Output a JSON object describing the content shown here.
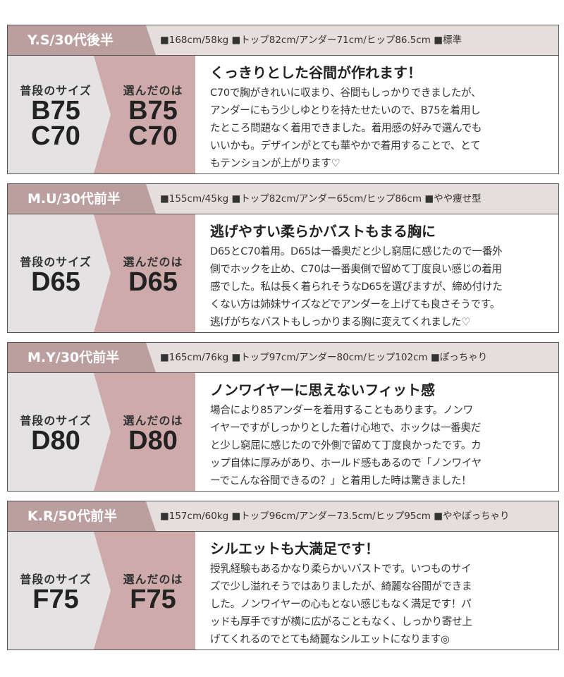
{
  "labels": {
    "usual": "普段のサイズ",
    "chosen": "選んだのは"
  },
  "colors": {
    "tag": "#bb9f9f",
    "header_bg": "#e6dedd",
    "left_panel": "#e4e2e2",
    "chosen_panel": "#ceabaa"
  },
  "cards": [
    {
      "person": "Y.S/30代後半",
      "stats": "■168cm/58kg ■トップ82cm/アンダー71cm/ヒップ86.5cm ■標準",
      "usual": [
        "B75",
        "C70"
      ],
      "chosen": [
        "B75",
        "C70"
      ],
      "title": "くっきりとした谷間が作れます！",
      "lines": [
        "C70で胸がきれいに収まり、谷間もしっかりできましたが、",
        "アンダーにもう少しゆとりを持たせたいので、B75を着用し",
        "たところ問題なく着用できました。着用感の好みで選んでも",
        "いいかも。デザインがとても華やかで着用することで、とて",
        "もテンションが上がります♡"
      ]
    },
    {
      "person": "M.U/30代前半",
      "stats": "■155cm/45kg ■トップ82cm/アンダー65cm/ヒップ86cm ■やや痩せ型",
      "usual": [
        "D65"
      ],
      "chosen": [
        "D65"
      ],
      "title": "逃げやすい柔らかバストもまる胸に",
      "lines": [
        "D65とC70着用。D65は一番奥だと少し窮屈に感じたので一番外",
        "側でホックを止め、C70は一番奥側で留めて丁度良い感じの着用",
        "感でした。私は長く着られそうなD65を選びますが、締め付けた",
        "くない方は姉妹サイズなどでアンダーを上げても良さそうです。",
        "逃げがちなバストもしっかりまる胸に変えてくれました♡"
      ]
    },
    {
      "person": "M.Y/30代前半",
      "stats": "■165cm/76kg ■トップ97cm/アンダー80cm/ヒップ102cm ■ぽっちゃり",
      "usual": [
        "D80"
      ],
      "chosen": [
        "D80"
      ],
      "title": "ノンワイヤーに思えないフィット感",
      "lines": [
        "場合により85アンダーを着用することもあります。ノンワ",
        "イヤーですがしっかりとした着け心地で、ホックは一番奥だ",
        "と少し窮屈に感じたので外側で留めて丁度良かったです。カ",
        "ップ自体に厚みがあり、ホールド感もあるので「ノンワイヤ",
        "ーでこんな谷間できるの？」と着用した時は驚きました！"
      ]
    },
    {
      "person": "K.R/50代前半",
      "stats": "■157cm/60kg ■トップ96cm/アンダー73.5cm/ヒップ95cm ■ややぽっちゃり",
      "usual": [
        "F75"
      ],
      "chosen": [
        "F75"
      ],
      "title": "シルエットも大満足です！",
      "lines": [
        "授乳経験もあるかなり柔らかいバストです。いつものサイ",
        "ズで少し溢れそうではありましたが、綺麗な谷間ができま",
        "した。ノンワイヤーの心もとない感じもなく満足です！パ",
        "ッドも厚手ですが横に広がることもなく、しっかり寄せ上",
        "げてくれるのでとても綺麗なシルエットになります◎"
      ]
    }
  ]
}
